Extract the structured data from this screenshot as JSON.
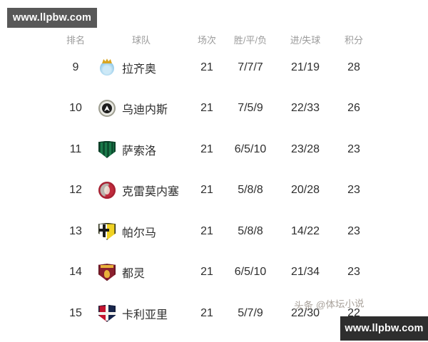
{
  "watermarks": {
    "top_left": "www.llpbw.com",
    "bottom_right": "www.llpbw.com",
    "byline": "头条 @体坛小说"
  },
  "colors": {
    "watermark_box_top": "#585858",
    "watermark_box_bottom": "#2e2e2e",
    "header_text": "#9b9b9b",
    "row_text": "#2e2e2e",
    "crest_lazio": "#8fc8e8",
    "crest_udinese": "#1d1d1d",
    "crest_sassuolo": "#1b7a4a",
    "crest_cremonese": "#c02a3c",
    "crest_parma": "#f0d224",
    "crest_torino": "#8a1f2d",
    "crest_cagliari": "#c3122e"
  },
  "table": {
    "headers": {
      "rank": "排名",
      "team": "球队",
      "played": "场次",
      "wdl": "胜/平/负",
      "goals": "进/失球",
      "points": "积分"
    },
    "rows": [
      {
        "rank": "9",
        "team": "拉齐奥",
        "crest": "lazio",
        "played": "21",
        "wdl": "7/7/7",
        "goals": "21/19",
        "points": "28"
      },
      {
        "rank": "10",
        "team": "乌迪内斯",
        "crest": "udinese",
        "played": "21",
        "wdl": "7/5/9",
        "goals": "22/33",
        "points": "26"
      },
      {
        "rank": "11",
        "team": "萨索洛",
        "crest": "sassuolo",
        "played": "21",
        "wdl": "6/5/10",
        "goals": "23/28",
        "points": "23"
      },
      {
        "rank": "12",
        "team": "克雷莫内塞",
        "crest": "cremonese",
        "played": "21",
        "wdl": "5/8/8",
        "goals": "20/28",
        "points": "23"
      },
      {
        "rank": "13",
        "team": "帕尔马",
        "crest": "parma",
        "played": "21",
        "wdl": "5/8/8",
        "goals": "14/22",
        "points": "23"
      },
      {
        "rank": "14",
        "team": "都灵",
        "crest": "torino",
        "played": "21",
        "wdl": "6/5/10",
        "goals": "21/34",
        "points": "23"
      },
      {
        "rank": "15",
        "team": "卡利亚里",
        "crest": "cagliari",
        "played": "21",
        "wdl": "5/7/9",
        "goals": "22/30",
        "points": "22"
      }
    ]
  }
}
